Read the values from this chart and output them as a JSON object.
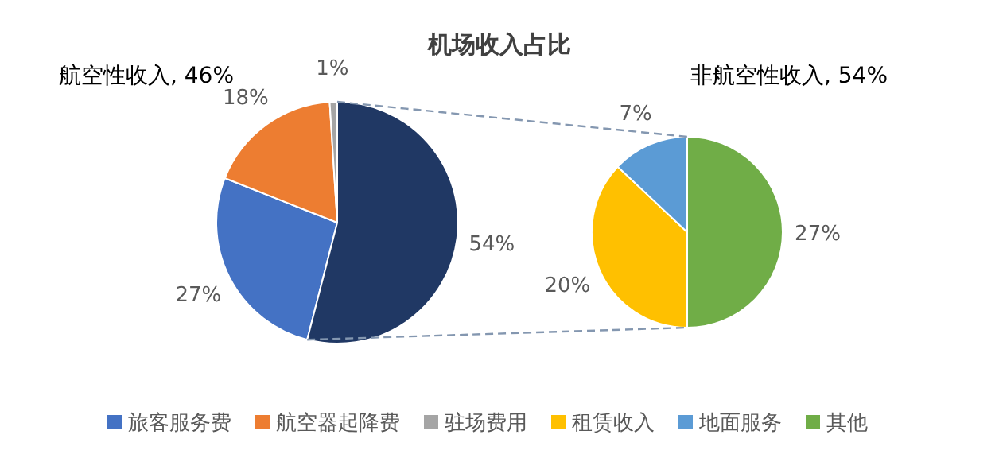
{
  "chart_data": [
    {
      "type": "pie",
      "title": "机场收入占比",
      "categories": [
        "旅客服务费",
        "航空器起降费",
        "驻场费用",
        null
      ],
      "values": [
        27,
        18,
        1,
        54
      ],
      "colors": [
        "#4472c4",
        "#ed7d31",
        "#a5a5a5",
        "#203864"
      ],
      "value_labels": [
        "27%",
        "18%",
        "1%",
        "54%"
      ],
      "annotations": [
        "航空性收入, 46%"
      ],
      "legend": "bottom"
    },
    {
      "type": "pie",
      "categories": [
        "租赁收入",
        "地面服务",
        "其他"
      ],
      "values": [
        20,
        7,
        27
      ],
      "colors": [
        "#ffc000",
        "#5b9bd5",
        "#70ad47"
      ],
      "value_labels": [
        "20%",
        "7%",
        "27%"
      ],
      "annotations": [
        "非航空性收入, 54%"
      ],
      "legend": "bottom"
    }
  ]
}
